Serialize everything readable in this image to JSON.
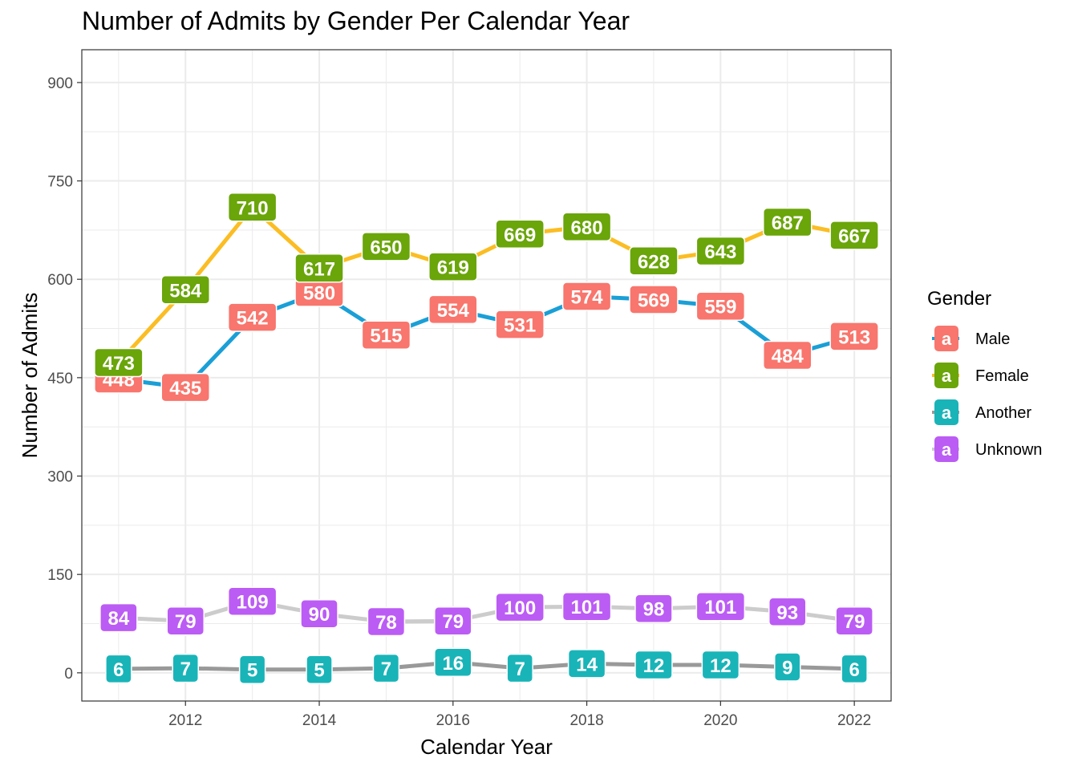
{
  "chart_data": {
    "type": "line",
    "title": "Number of Admits by Gender Per Calendar Year",
    "xlabel": "Calendar Year",
    "ylabel": "Number of Admits",
    "xlim": [
      2010.45,
      2022.55
    ],
    "ylim": [
      -43,
      950
    ],
    "x_ticks": [
      2012,
      2014,
      2016,
      2018,
      2020,
      2022
    ],
    "y_ticks": [
      0,
      150,
      300,
      450,
      600,
      750,
      900
    ],
    "grid": true,
    "x": [
      2011,
      2012,
      2013,
      2014,
      2015,
      2016,
      2017,
      2018,
      2019,
      2020,
      2021,
      2022
    ],
    "legend": {
      "title": "Gender",
      "position": "right",
      "key_glyph": "a"
    },
    "series": [
      {
        "name": "Male",
        "line_color": "#1a9fd6",
        "label_color": "#f8766d",
        "values": [
          448,
          435,
          542,
          580,
          515,
          554,
          531,
          574,
          569,
          559,
          484,
          513
        ]
      },
      {
        "name": "Female",
        "line_color": "#fbbd23",
        "label_color": "#6aa50a",
        "values": [
          473,
          584,
          710,
          617,
          650,
          619,
          669,
          680,
          628,
          643,
          687,
          667
        ]
      },
      {
        "name": "Another",
        "line_color": "#999999",
        "label_color": "#19b4b8",
        "values": [
          6,
          7,
          5,
          5,
          7,
          16,
          7,
          14,
          12,
          12,
          9,
          6
        ]
      },
      {
        "name": "Unknown",
        "line_color": "#cccccc",
        "label_color": "#bb5cf4",
        "values": [
          84,
          79,
          109,
          90,
          78,
          79,
          100,
          101,
          98,
          101,
          93,
          79
        ]
      }
    ],
    "draw_order": [
      "Another",
      "Unknown",
      "Male",
      "Female"
    ]
  }
}
